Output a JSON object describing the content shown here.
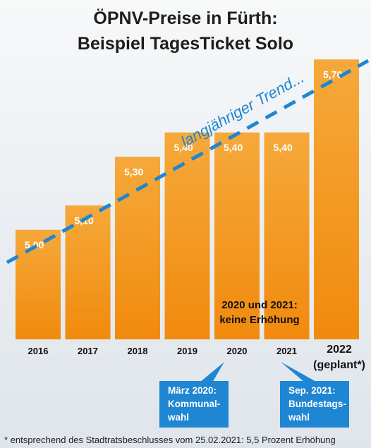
{
  "title_line1": "ÖPNV-Preise in Fürth:",
  "title_line2": "Beispiel TagesTicket Solo",
  "trend_label": "langjähriger Trend...",
  "note_line1": "2020 und 2021:",
  "note_line2": "keine Erhöhung",
  "callouts": [
    {
      "line1": "März 2020:",
      "line2": "Kommunal-",
      "line3": "wahl"
    },
    {
      "line1": "Sep. 2021:",
      "line2": "Bundestags-",
      "line3": "wahl"
    }
  ],
  "footnote": "* entsprechend des Stadtratsbeschlusses vom 25.02.2021: 5,5 Prozent Erhöhung",
  "colors": {
    "bar_top": "#f5a93a",
    "bar_bottom": "#f18a0d",
    "trend": "#1e86d2",
    "callout": "#1e86d2"
  },
  "chart_data": {
    "type": "bar",
    "categories": [
      "2016",
      "2017",
      "2018",
      "2019",
      "2020",
      "2021",
      "2022"
    ],
    "category_sub": [
      "",
      "",
      "",
      "",
      "",
      "",
      "(geplant*)"
    ],
    "values": [
      5.0,
      5.1,
      5.3,
      5.4,
      5.4,
      5.4,
      5.7
    ],
    "value_labels": [
      "5,00",
      "5,10",
      "5,30",
      "5,40",
      "5,40",
      "5,40",
      "5,70"
    ],
    "ylim": [
      4.55,
      5.78
    ],
    "grid": false,
    "legend": "none"
  }
}
